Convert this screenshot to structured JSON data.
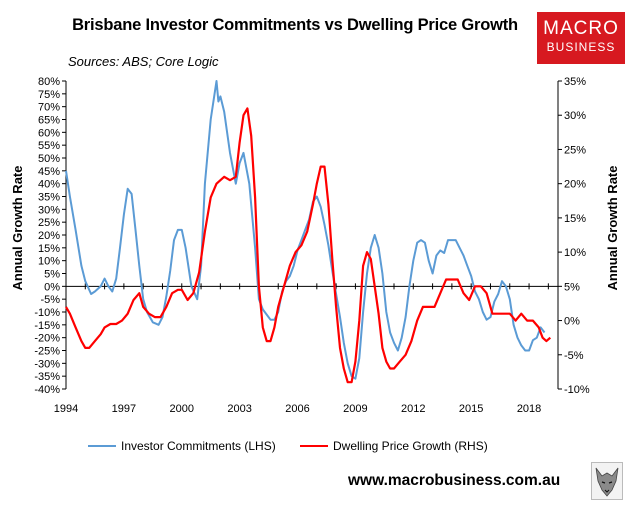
{
  "title": "Brisbane Investor Commitments vs Dwelling Price Growth",
  "sources": "Sources: ABS; Core Logic",
  "logo": {
    "line1": "MACRO",
    "line2": "BUSINESS"
  },
  "website": "www.macrobusiness.com.au",
  "colors": {
    "investor": "#5b9bd5",
    "price": "#ff0000",
    "logo_bg": "#d71920"
  },
  "chart_data": {
    "type": "line",
    "title": "Brisbane Investor Commitments vs Dwelling Price Growth",
    "xlabel": "",
    "ylabel_left": "Annual Growth Rate",
    "ylabel_right": "Annual Growth Rate",
    "xlim": [
      1994,
      2019.5
    ],
    "x_ticks": [
      1994,
      1997,
      2000,
      2003,
      2006,
      2009,
      2012,
      2015,
      2018
    ],
    "ylim_left": [
      -40,
      80
    ],
    "ylim_right": [
      -10,
      35
    ],
    "y_ticks_left": [
      -40,
      -35,
      -30,
      -25,
      -20,
      -15,
      -10,
      -5,
      0,
      5,
      10,
      15,
      20,
      25,
      30,
      35,
      40,
      45,
      50,
      55,
      60,
      65,
      70,
      75,
      80
    ],
    "y_ticks_right": [
      -10,
      -5,
      0,
      5,
      10,
      15,
      20,
      25,
      30,
      35
    ],
    "left_tick_labels": [
      "-40%",
      "-35%",
      "-30%",
      "-25%",
      "-20%",
      "-15%",
      "-10%",
      "-5%",
      "0%",
      "5%",
      "10%",
      "15%",
      "20%",
      "25%",
      "30%",
      "35%",
      "40%",
      "45%",
      "50%",
      "55%",
      "60%",
      "65%",
      "70%",
      "75%",
      "80%"
    ],
    "right_tick_labels": [
      "-10%",
      "-5%",
      "0%",
      "5%",
      "10%",
      "15%",
      "20%",
      "25%",
      "30%",
      "35%"
    ],
    "x_tick_labels": [
      "1994",
      "1997",
      "2000",
      "2003",
      "2006",
      "2009",
      "2012",
      "2015",
      "2018"
    ],
    "series": [
      {
        "name": "Investor Commitments (LHS)",
        "axis": "left",
        "x": [
          1994.0,
          1994.2,
          1994.5,
          1994.8,
          1995.0,
          1995.3,
          1995.5,
          1995.8,
          1996.0,
          1996.2,
          1996.4,
          1996.6,
          1996.8,
          1997.0,
          1997.2,
          1997.4,
          1997.6,
          1997.8,
          1998.0,
          1998.2,
          1998.5,
          1998.8,
          1999.0,
          1999.2,
          1999.4,
          1999.6,
          1999.8,
          2000.0,
          2000.2,
          2000.5,
          2000.8,
          2001.0,
          2001.2,
          2001.5,
          2001.8,
          2001.9,
          2002.0,
          2002.2,
          2002.5,
          2002.8,
          2003.0,
          2003.2,
          2003.5,
          2003.8,
          2004.0,
          2004.2,
          2004.4,
          2004.6,
          2004.8,
          2005.0,
          2005.2,
          2005.4,
          2005.6,
          2005.8,
          2006.0,
          2006.2,
          2006.4,
          2006.6,
          2006.8,
          2007.0,
          2007.2,
          2007.4,
          2007.6,
          2007.8,
          2008.0,
          2008.2,
          2008.4,
          2008.6,
          2008.8,
          2009.0,
          2009.2,
          2009.4,
          2009.6,
          2009.8,
          2010.0,
          2010.2,
          2010.4,
          2010.6,
          2010.8,
          2011.0,
          2011.2,
          2011.4,
          2011.6,
          2011.8,
          2012.0,
          2012.2,
          2012.4,
          2012.6,
          2012.8,
          2013.0,
          2013.2,
          2013.4,
          2013.6,
          2013.8,
          2014.0,
          2014.2,
          2014.4,
          2014.6,
          2014.8,
          2015.0,
          2015.2,
          2015.4,
          2015.6,
          2015.8,
          2016.0,
          2016.2,
          2016.4,
          2016.6,
          2016.8,
          2017.0,
          2017.2,
          2017.4,
          2017.6,
          2017.8,
          2018.0,
          2018.2,
          2018.4,
          2018.6,
          2018.8
        ],
        "values": [
          45,
          35,
          22,
          8,
          2,
          -3,
          -2,
          0,
          3,
          0,
          -2,
          3,
          15,
          28,
          38,
          36,
          22,
          8,
          -5,
          -10,
          -14,
          -15,
          -12,
          -4,
          6,
          18,
          22,
          22,
          15,
          0,
          -5,
          8,
          40,
          65,
          80,
          72,
          74,
          68,
          52,
          40,
          48,
          52,
          40,
          15,
          -5,
          -9,
          -11,
          -13,
          -13,
          -10,
          -2,
          2,
          4,
          8,
          14,
          18,
          22,
          26,
          33,
          35,
          31,
          24,
          16,
          6,
          -3,
          -12,
          -22,
          -30,
          -35,
          -36,
          -28,
          -10,
          5,
          15,
          20,
          15,
          5,
          -10,
          -18,
          -22,
          -25,
          -20,
          -12,
          0,
          10,
          17,
          18,
          17,
          10,
          5,
          12,
          14,
          13,
          18,
          18,
          18,
          15,
          12,
          8,
          4,
          -2,
          -5,
          -10,
          -13,
          -12,
          -6,
          -3,
          2,
          0,
          -5,
          -15,
          -20,
          -23,
          -25,
          -25,
          -21,
          -20,
          -16,
          -18
        ]
      },
      {
        "name": "Dwelling Price Growth (RHS)",
        "axis": "right",
        "x": [
          1994.0,
          1994.2,
          1994.5,
          1994.8,
          1995.0,
          1995.2,
          1995.5,
          1995.8,
          1996.0,
          1996.3,
          1996.6,
          1996.9,
          1997.2,
          1997.5,
          1997.8,
          1998.0,
          1998.3,
          1998.6,
          1998.9,
          1999.2,
          1999.5,
          1999.8,
          2000.0,
          2000.3,
          2000.6,
          2000.9,
          2001.2,
          2001.5,
          2001.8,
          2002.0,
          2002.2,
          2002.5,
          2002.8,
          2003.0,
          2003.2,
          2003.4,
          2003.6,
          2003.8,
          2004.0,
          2004.2,
          2004.4,
          2004.6,
          2004.8,
          2005.0,
          2005.3,
          2005.6,
          2005.9,
          2006.2,
          2006.5,
          2006.8,
          2007.0,
          2007.2,
          2007.4,
          2007.6,
          2007.8,
          2008.0,
          2008.2,
          2008.4,
          2008.6,
          2008.8,
          2009.0,
          2009.2,
          2009.4,
          2009.6,
          2009.8,
          2010.0,
          2010.2,
          2010.4,
          2010.6,
          2010.8,
          2011.0,
          2011.3,
          2011.6,
          2011.9,
          2012.2,
          2012.5,
          2012.8,
          2013.1,
          2013.4,
          2013.7,
          2014.0,
          2014.3,
          2014.6,
          2014.9,
          2015.2,
          2015.5,
          2015.8,
          2016.1,
          2016.4,
          2016.7,
          2017.0,
          2017.3,
          2017.6,
          2017.9,
          2018.2,
          2018.5,
          2018.7,
          2018.9,
          2019.1
        ],
        "values": [
          2,
          1,
          -1,
          -3,
          -4,
          -4,
          -3,
          -2,
          -1,
          -0.5,
          -0.5,
          0,
          1,
          3,
          4,
          2,
          1,
          0.5,
          0.5,
          2,
          4,
          4.5,
          4.5,
          3,
          4,
          7,
          13,
          18,
          20,
          20.5,
          21,
          20.5,
          21,
          26,
          30,
          31,
          27,
          18,
          5,
          -1,
          -3,
          -3,
          -1,
          2,
          5,
          8,
          10,
          11,
          13,
          17,
          20,
          22.5,
          22.5,
          17,
          9,
          2,
          -4,
          -7,
          -9,
          -9,
          -6,
          0,
          8,
          10,
          9,
          5,
          1,
          -4,
          -6,
          -7,
          -7,
          -6,
          -5,
          -3,
          0,
          2,
          2,
          2,
          4,
          6,
          6,
          6,
          4,
          3,
          5,
          5,
          4,
          1,
          1,
          1,
          1,
          0,
          1,
          0,
          0,
          -1,
          -2.5,
          -3,
          -2.5
        ]
      }
    ]
  }
}
